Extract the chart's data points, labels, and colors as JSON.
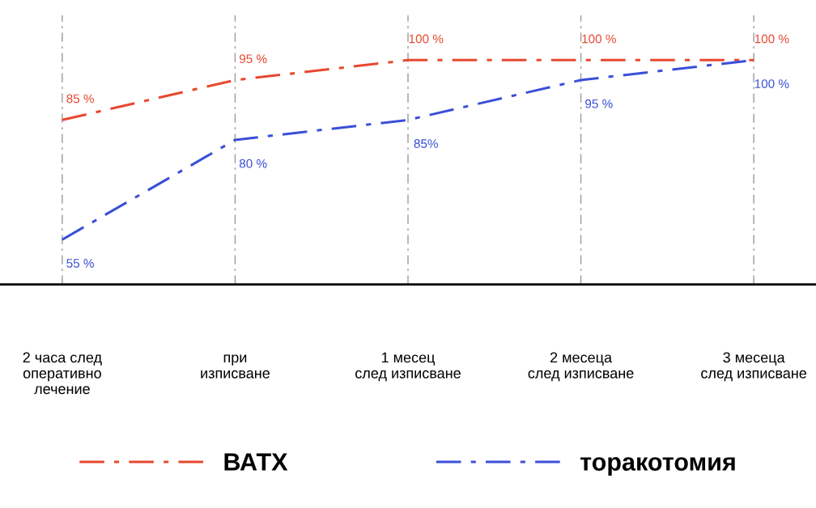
{
  "chart_data": {
    "type": "line",
    "categories": [
      "2 часа след\nоперативно\nлечение",
      "при\nизписване",
      "1 месец\nслед изписване",
      "2 месеца\nслед изписване",
      "3 месеца\nслед изписване"
    ],
    "series": [
      {
        "name": "ВАТХ",
        "color": "#e8482f",
        "values": [
          85,
          95,
          100,
          100,
          100
        ],
        "value_labels": [
          "85 %",
          "95 %",
          "100 %",
          "100 %",
          "100 %"
        ],
        "line_style": "dashdot"
      },
      {
        "name": "торакотомия",
        "color": "#3a4fd8",
        "values": [
          55,
          80,
          85,
          95,
          100
        ],
        "value_labels": [
          "55 %",
          "80 %",
          "85%",
          "95 %",
          "100 %"
        ],
        "line_style": "dashdot"
      }
    ],
    "grid": "x",
    "legend": "bottom",
    "marker": "none"
  }
}
